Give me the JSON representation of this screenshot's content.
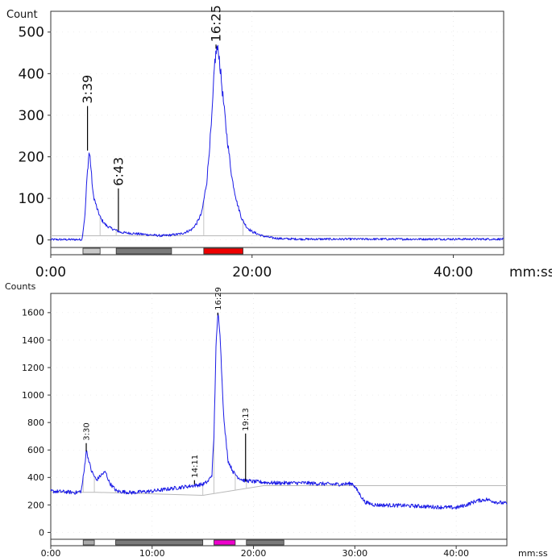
{
  "chart_data": [
    {
      "type": "line",
      "ylabel": "Count",
      "xunit": "mm:ss",
      "xlim": [
        0,
        45
      ],
      "ylim": [
        -20,
        550
      ],
      "x_ticks": [
        {
          "v": 0,
          "label": "0:00"
        },
        {
          "v": 20,
          "label": "20:00"
        },
        {
          "v": 40,
          "label": "40:00"
        }
      ],
      "y_ticks": [
        0,
        100,
        200,
        300,
        400,
        500
      ],
      "baseline": 10,
      "line_color": "#1a1ae6",
      "annotations": [
        {
          "x": 3.65,
          "label": "3:39",
          "top": 322,
          "bottom": 215
        },
        {
          "x": 6.72,
          "label": "6:43",
          "top": 124,
          "bottom": 22
        },
        {
          "x": 16.42,
          "label": "16:25",
          "top": 470,
          "bottom": 460
        }
      ],
      "fractions": [
        {
          "start": 3.2,
          "end": 4.9,
          "color": "#c8c8c8"
        },
        {
          "start": 6.5,
          "end": 12.0,
          "color": "#7a7a7a"
        },
        {
          "start": 15.2,
          "end": 19.1,
          "color": "#ee0000"
        }
      ],
      "series": [
        {
          "values": [
            [
              0,
              1
            ],
            [
              3.1,
              1
            ],
            [
              3.4,
              60
            ],
            [
              3.6,
              150
            ],
            [
              3.8,
              210
            ],
            [
              3.9,
              200
            ],
            [
              4.2,
              110
            ],
            [
              4.6,
              75
            ],
            [
              5.0,
              50
            ],
            [
              5.5,
              35
            ],
            [
              6.0,
              28
            ],
            [
              7.0,
              18
            ],
            [
              8.0,
              16
            ],
            [
              9.0,
              14
            ],
            [
              10.0,
              12
            ],
            [
              11.0,
              10
            ],
            [
              12.0,
              12
            ],
            [
              13.0,
              15
            ],
            [
              14.0,
              25
            ],
            [
              14.5,
              40
            ],
            [
              15.0,
              65
            ],
            [
              15.5,
              140
            ],
            [
              16.0,
              290
            ],
            [
              16.3,
              430
            ],
            [
              16.5,
              460
            ],
            [
              16.7,
              450
            ],
            [
              17.0,
              370
            ],
            [
              17.5,
              250
            ],
            [
              18.0,
              150
            ],
            [
              18.5,
              90
            ],
            [
              19.0,
              50
            ],
            [
              19.5,
              30
            ],
            [
              20.0,
              20
            ],
            [
              20.5,
              15
            ],
            [
              21.0,
              10
            ],
            [
              22.0,
              5
            ],
            [
              23.0,
              3
            ],
            [
              25.0,
              2
            ],
            [
              30.0,
              2
            ],
            [
              35.0,
              2
            ],
            [
              40.0,
              2
            ],
            [
              45.0,
              2
            ]
          ]
        }
      ]
    },
    {
      "type": "line",
      "ylabel": "Counts",
      "xunit": "mm:ss",
      "xlim": [
        0,
        45
      ],
      "ylim": [
        -50,
        1740
      ],
      "x_ticks": [
        {
          "v": 0,
          "label": "0:00"
        },
        {
          "v": 10,
          "label": "10:00"
        },
        {
          "v": 20,
          "label": "20:00"
        },
        {
          "v": 30,
          "label": "30:00"
        },
        {
          "v": 40,
          "label": "40:00"
        }
      ],
      "y_ticks": [
        0,
        200,
        400,
        600,
        800,
        1000,
        1200,
        1400,
        1600
      ],
      "baseline": [
        [
          0,
          292
        ],
        [
          4.5,
          292
        ],
        [
          15.0,
          270
        ],
        [
          21.0,
          340
        ],
        [
          45.0,
          340
        ]
      ],
      "line_color": "#1a1ae6",
      "annotations": [
        {
          "x": 3.5,
          "label": "3:30",
          "top": 650,
          "bottom": 590
        },
        {
          "x": 14.18,
          "label": "14:11",
          "top": 380,
          "bottom": 350
        },
        {
          "x": 16.48,
          "label": "16:29",
          "top": 1600,
          "bottom": 1580
        },
        {
          "x": 19.22,
          "label": "19:13",
          "top": 720,
          "bottom": 370
        }
      ],
      "fractions": [
        {
          "start": 3.2,
          "end": 4.3,
          "color": "#aaaaaa"
        },
        {
          "start": 6.4,
          "end": 15.0,
          "color": "#7a7a7a"
        },
        {
          "start": 16.1,
          "end": 18.2,
          "color": "#ee00cc"
        },
        {
          "start": 19.3,
          "end": 23.0,
          "color": "#7a7a7a"
        }
      ],
      "series": [
        {
          "values": [
            [
              0,
              300
            ],
            [
              1.5,
              295
            ],
            [
              2.5,
              290
            ],
            [
              3.0,
              300
            ],
            [
              3.3,
              450
            ],
            [
              3.5,
              600
            ],
            [
              3.7,
              540
            ],
            [
              4.0,
              450
            ],
            [
              4.5,
              380
            ],
            [
              5.0,
              420
            ],
            [
              5.4,
              440
            ],
            [
              5.8,
              360
            ],
            [
              6.5,
              300
            ],
            [
              8.0,
              290
            ],
            [
              10.0,
              300
            ],
            [
              12.0,
              320
            ],
            [
              14.0,
              340
            ],
            [
              15.0,
              350
            ],
            [
              15.5,
              370
            ],
            [
              15.9,
              420
            ],
            [
              16.1,
              700
            ],
            [
              16.3,
              1350
            ],
            [
              16.5,
              1600
            ],
            [
              16.7,
              1450
            ],
            [
              16.9,
              1100
            ],
            [
              17.1,
              800
            ],
            [
              17.5,
              520
            ],
            [
              18.0,
              440
            ],
            [
              18.5,
              400
            ],
            [
              19.0,
              380
            ],
            [
              20.0,
              370
            ],
            [
              22.0,
              360
            ],
            [
              25.0,
              360
            ],
            [
              28.0,
              350
            ],
            [
              29.8,
              355
            ],
            [
              30.2,
              310
            ],
            [
              31.0,
              220
            ],
            [
              32.0,
              200
            ],
            [
              35.0,
              195
            ],
            [
              38.0,
              185
            ],
            [
              40.0,
              180
            ],
            [
              41.0,
              200
            ],
            [
              42.0,
              230
            ],
            [
              43.0,
              240
            ],
            [
              44.0,
              220
            ],
            [
              45.0,
              210
            ]
          ]
        }
      ]
    }
  ]
}
